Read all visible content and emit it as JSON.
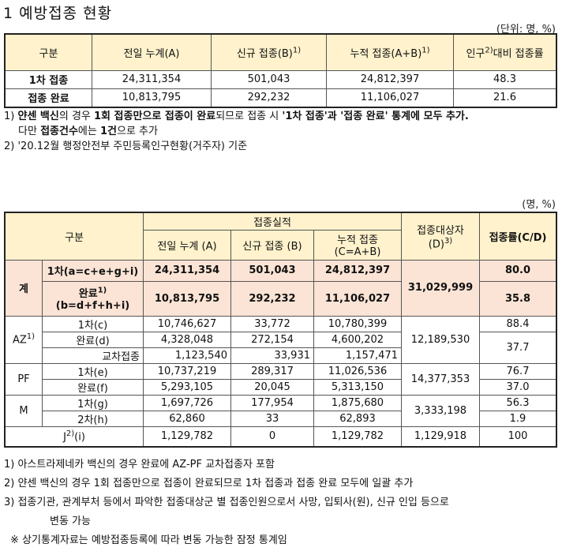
{
  "title": "1 예방접종 현황",
  "table1": {
    "unit": "(단위: 명, %)",
    "headers": [
      "구분",
      "전일 누계(A)",
      "신규 접종(B)",
      "1)",
      "누적 접종(A+B)",
      "1)",
      "인구",
      "2)",
      "대비 접종률"
    ],
    "rows": [
      {
        "label": "1차 접종",
        "a": "24,311,354",
        "b": "501,043",
        "c": "24,812,397",
        "rate": "48.3"
      },
      {
        "label": "접종 완료",
        "a": "10,813,795",
        "b": "292,232",
        "c": "11,106,027",
        "rate": "21.6"
      }
    ]
  },
  "notes1": {
    "n1_prefix": "1) ",
    "n1_a": "얀센 백신",
    "n1_b": "의 경우 ",
    "n1_c": "1회 접종만으로 접종이 완료",
    "n1_d": "되므로 접종 시 ",
    "n1_e": "'1차 접종'과 '접종 완료' 통계에 모두 추가.",
    "n1_line2a": "다만 ",
    "n1_line2b": "접종건수",
    "n1_line2c": "에는 ",
    "n1_line2d": "1건",
    "n1_line2e": "으로 추가",
    "n2": "2) '20.12월 행정안전부 주민등록인구현황(거주자) 기준"
  },
  "table2": {
    "unit": "(명, %)",
    "h_group": "구분",
    "h_perf": "접종실적",
    "h_a": "전일 누계 (A)",
    "h_b": "신규 접종 (B)",
    "h_c1": "누적 접종",
    "h_c2": "(C=A+B)",
    "h_d1": "접종대상자",
    "h_d2": "(D)",
    "h_d_sup": "3)",
    "h_rate": "접종률(C/D)",
    "total": {
      "label": "계",
      "r1_label": "1차(a=c+e+g+i)",
      "r1": [
        "24,311,354",
        "501,043",
        "24,812,397"
      ],
      "r1_rate": "80.0",
      "r2_label1": "완료",
      "r2_sup": "1)",
      "r2_label2": "(b=d+f+h+i)",
      "r2": [
        "10,813,795",
        "292,232",
        "11,106,027"
      ],
      "r2_rate": "35.8",
      "target": "31,029,999"
    },
    "az": {
      "label": "AZ",
      "sup": "1)",
      "r1_label": "1차(c)",
      "r1": [
        "10,746,627",
        "33,772",
        "10,780,399"
      ],
      "r1_rate": "88.4",
      "r2_label": "완료(d)",
      "r2": [
        "4,328,048",
        "272,154",
        "4,600,202"
      ],
      "r3_label": "교차접종",
      "r3": [
        "1,123,540",
        "33,931",
        "1,157,471"
      ],
      "r2_rate": "37.7",
      "target": "12,189,530"
    },
    "pf": {
      "label": "PF",
      "r1_label": "1차(e)",
      "r1": [
        "10,737,219",
        "289,317",
        "11,026,536"
      ],
      "r1_rate": "76.7",
      "r2_label": "완료(f)",
      "r2": [
        "5,293,105",
        "20,045",
        "5,313,150"
      ],
      "r2_rate": "37.0",
      "target": "14,377,353"
    },
    "m": {
      "label": "M",
      "r1_label": "1차(g)",
      "r1": [
        "1,697,726",
        "177,954",
        "1,875,680"
      ],
      "r1_rate": "56.3",
      "r2_label": "2차(h)",
      "r2": [
        "62,860",
        "33",
        "62,893"
      ],
      "r2_rate": "1.9",
      "target": "3,333,198"
    },
    "j": {
      "label": "J",
      "sup": "2)",
      "suffix": "(i)",
      "values": [
        "1,129,782",
        "0",
        "1,129,782"
      ],
      "target": "1,129,918",
      "rate": "100"
    }
  },
  "notes2": [
    "1) 아스트라제네카 백신의 경우 완료에 AZ-PF 교차접종자 포함",
    "2) 얀센 백신의 경우 1회 접종만으로 접종이 완료되므로 1차 접종과 접종 완료 모두에 일괄 추가",
    "3) 접종기관, 관계부처 등에서 파악한 접종대상군 별 접종인원으로서 사망, 입퇴사(원), 신규 인입 등으로",
    "변동 가능",
    "※ 상기통계자료는 예방접종등록에 따라 변동 가능한 잠정 통계임"
  ]
}
